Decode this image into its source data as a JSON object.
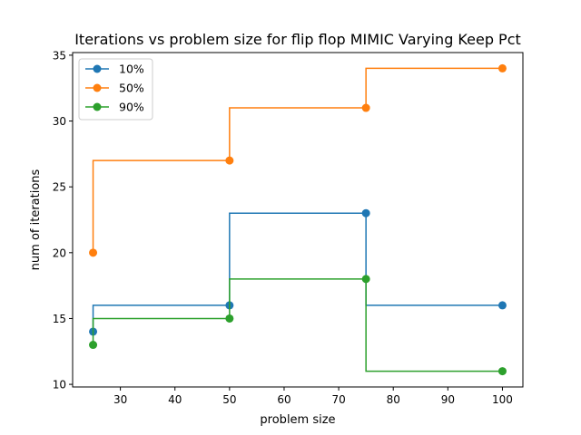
{
  "chart_data": {
    "type": "line",
    "step": "pre",
    "title": "Iterations vs problem size for flip flop MIMIC Varying Keep Pct",
    "xlabel": "problem size",
    "ylabel": "num of iterations",
    "xlim": [
      21.25,
      103.75
    ],
    "ylim": [
      9.8,
      35.2
    ],
    "xticks": [
      30,
      40,
      50,
      60,
      70,
      80,
      90,
      100
    ],
    "yticks": [
      10,
      15,
      20,
      25,
      30,
      35
    ],
    "grid": false,
    "legend_position": "top-left",
    "x": [
      25,
      50,
      75,
      100
    ],
    "series": [
      {
        "name": "10%",
        "color": "#1f77b4",
        "values": [
          14,
          16,
          23,
          16
        ]
      },
      {
        "name": "50%",
        "color": "#ff7f0e",
        "values": [
          20,
          27,
          31,
          34
        ]
      },
      {
        "name": "90%",
        "color": "#2ca02c",
        "values": [
          13,
          15,
          18,
          11
        ]
      }
    ]
  }
}
